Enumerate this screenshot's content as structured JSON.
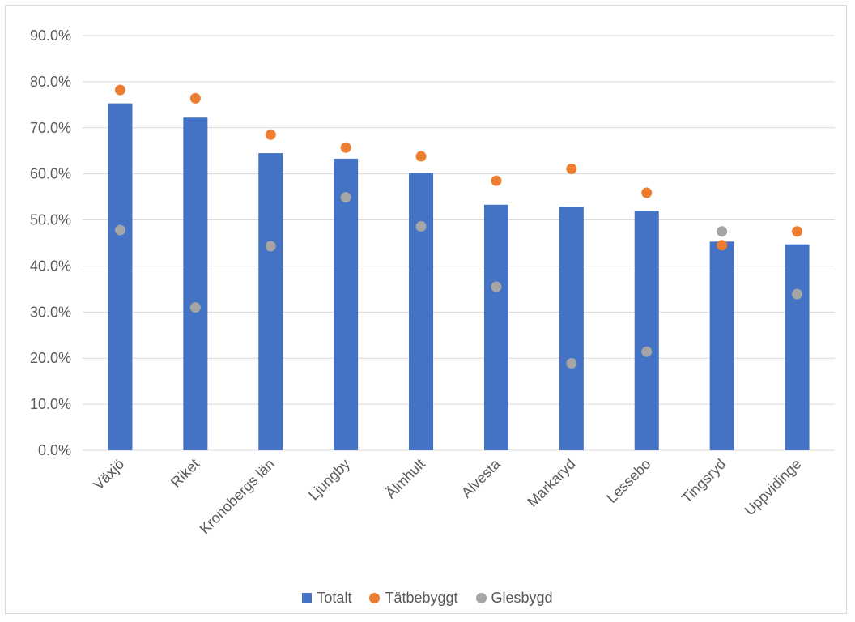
{
  "chart_data": {
    "type": "bar",
    "categories": [
      "Växjö",
      "Riket",
      "Kronobergs län",
      "Ljungby",
      "Älmhult",
      "Alvesta",
      "Markaryd",
      "Lessebo",
      "Tingsryd",
      "Uppvidinge"
    ],
    "series": [
      {
        "name": "Totalt",
        "kind": "bar",
        "color": "#4472c4",
        "values": [
          75.3,
          72.2,
          64.5,
          63.3,
          60.2,
          53.3,
          52.8,
          52.0,
          45.3,
          44.7
        ]
      },
      {
        "name": "Tätbebyggt",
        "kind": "marker",
        "color": "#ed7d31",
        "values": [
          78.2,
          76.4,
          68.5,
          65.7,
          63.8,
          58.5,
          61.1,
          55.9,
          44.5,
          47.5
        ]
      },
      {
        "name": "Glesbygd",
        "kind": "marker",
        "color": "#a5a5a5",
        "values": [
          47.8,
          31.0,
          44.3,
          54.9,
          48.6,
          35.5,
          18.9,
          21.4,
          47.5,
          33.9
        ]
      }
    ],
    "yticks": [
      "0.0%",
      "10.0%",
      "20.0%",
      "30.0%",
      "40.0%",
      "50.0%",
      "60.0%",
      "70.0%",
      "80.0%",
      "90.0%"
    ],
    "ylim": [
      0,
      90
    ],
    "grid": true,
    "legend_position": "bottom",
    "title": "",
    "xlabel": "",
    "ylabel": ""
  }
}
